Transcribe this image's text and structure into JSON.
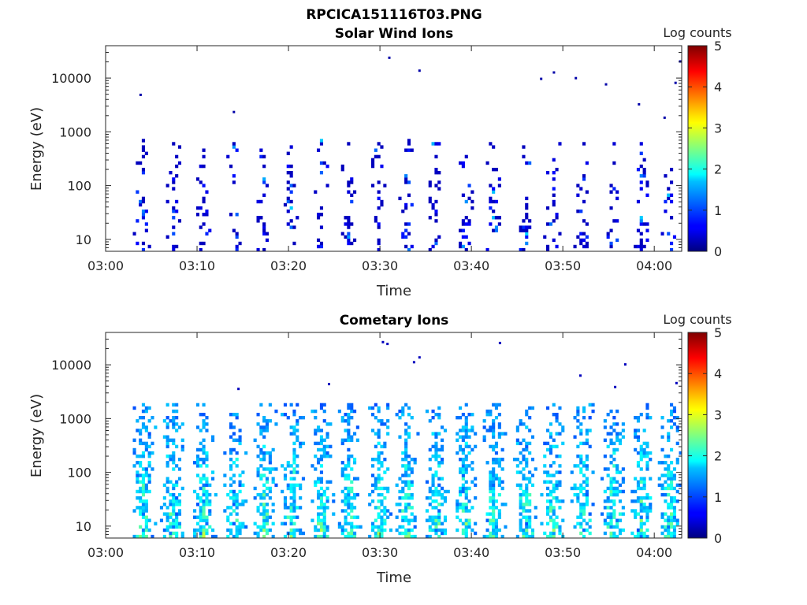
{
  "figure": {
    "title": "RPCICA151116T03.PNG"
  },
  "chart_data": [
    {
      "type": "heatmap",
      "title": "Solar Wind Ions",
      "xlabel": "Time",
      "ylabel": "Energy (eV)",
      "x_ticks": [
        "03:00",
        "03:10",
        "03:20",
        "03:30",
        "03:40",
        "03:50",
        "04:00"
      ],
      "xlim": [
        "03:00",
        "04:03"
      ],
      "y_scale": "log",
      "y_ticks": [
        10,
        100,
        1000,
        10000
      ],
      "ylim": [
        6,
        40000
      ],
      "colorbar": {
        "label": "Log counts",
        "range": [
          0,
          5
        ],
        "ticks": [
          0,
          1,
          2,
          3,
          4,
          5
        ],
        "colormap": "jet"
      },
      "scan_times": [
        "03:03.8",
        "03:07.3",
        "03:10.5",
        "03:14.0",
        "03:17.0",
        "03:20.2",
        "03:23.5",
        "03:26.5",
        "03:29.6",
        "03:32.8",
        "03:35.8",
        "03:39.2",
        "03:42.3",
        "03:45.8",
        "03:48.7",
        "03:52.0",
        "03:55.3",
        "03:58.5",
        "04:01.5"
      ],
      "typical_level": 0.3,
      "peak_level": 1.8,
      "energy_floor_ev": 6,
      "energy_top_ev": 500,
      "sparse_high_energy_counts": [
        {
          "time": "03:03.7",
          "energy": 4800
        },
        {
          "time": "03:13.9",
          "energy": 2300
        },
        {
          "time": "03:30.9",
          "energy": 23500
        },
        {
          "time": "03:34.2",
          "energy": 13500
        },
        {
          "time": "03:48.9",
          "energy": 12500
        },
        {
          "time": "03:47.5",
          "energy": 9500
        },
        {
          "time": "03:51.3",
          "energy": 9800
        },
        {
          "time": "03:54.6",
          "energy": 7500
        },
        {
          "time": "03:58.2",
          "energy": 3200
        },
        {
          "time": "04:02.7",
          "energy": 20000
        },
        {
          "time": "04:02.2",
          "energy": 8000
        },
        {
          "time": "04:01.0",
          "energy": 1800
        }
      ]
    },
    {
      "type": "heatmap",
      "title": "Cometary Ions",
      "xlabel": "Time",
      "ylabel": "Energy (eV)",
      "x_ticks": [
        "03:00",
        "03:10",
        "03:20",
        "03:30",
        "03:40",
        "03:50",
        "04:00"
      ],
      "xlim": [
        "03:00",
        "04:03"
      ],
      "y_scale": "log",
      "y_ticks": [
        10,
        100,
        1000,
        10000
      ],
      "ylim": [
        6,
        40000
      ],
      "colorbar": {
        "label": "Log counts",
        "range": [
          0,
          5
        ],
        "ticks": [
          0,
          1,
          2,
          3,
          4,
          5
        ],
        "colormap": "jet"
      },
      "scan_times": [
        "03:04.0",
        "03:07.2",
        "03:10.6",
        "03:14.0",
        "03:17.2",
        "03:20.3",
        "03:23.5",
        "03:26.5",
        "03:29.8",
        "03:32.8",
        "03:36.0",
        "03:39.2",
        "03:42.3",
        "03:45.8",
        "03:48.7",
        "03:52.0",
        "03:55.3",
        "03:58.5",
        "04:01.5"
      ],
      "typical_level": 1.3,
      "peak_level": 2.8,
      "energy_floor_ev": 6,
      "energy_top_ev": 1300,
      "sparse_high_energy_counts": [
        {
          "time": "03:30.2",
          "energy": 26000
        },
        {
          "time": "03:30.7",
          "energy": 24000
        },
        {
          "time": "03:33.6",
          "energy": 11000
        },
        {
          "time": "03:34.2",
          "energy": 13500
        },
        {
          "time": "03:43.0",
          "energy": 25000
        },
        {
          "time": "03:24.3",
          "energy": 4300
        },
        {
          "time": "03:14.4",
          "energy": 3500
        },
        {
          "time": "03:51.8",
          "energy": 6200
        },
        {
          "time": "03:56.7",
          "energy": 10000
        },
        {
          "time": "03:55.6",
          "energy": 3800
        },
        {
          "time": "04:02.3",
          "energy": 4500
        }
      ]
    }
  ]
}
